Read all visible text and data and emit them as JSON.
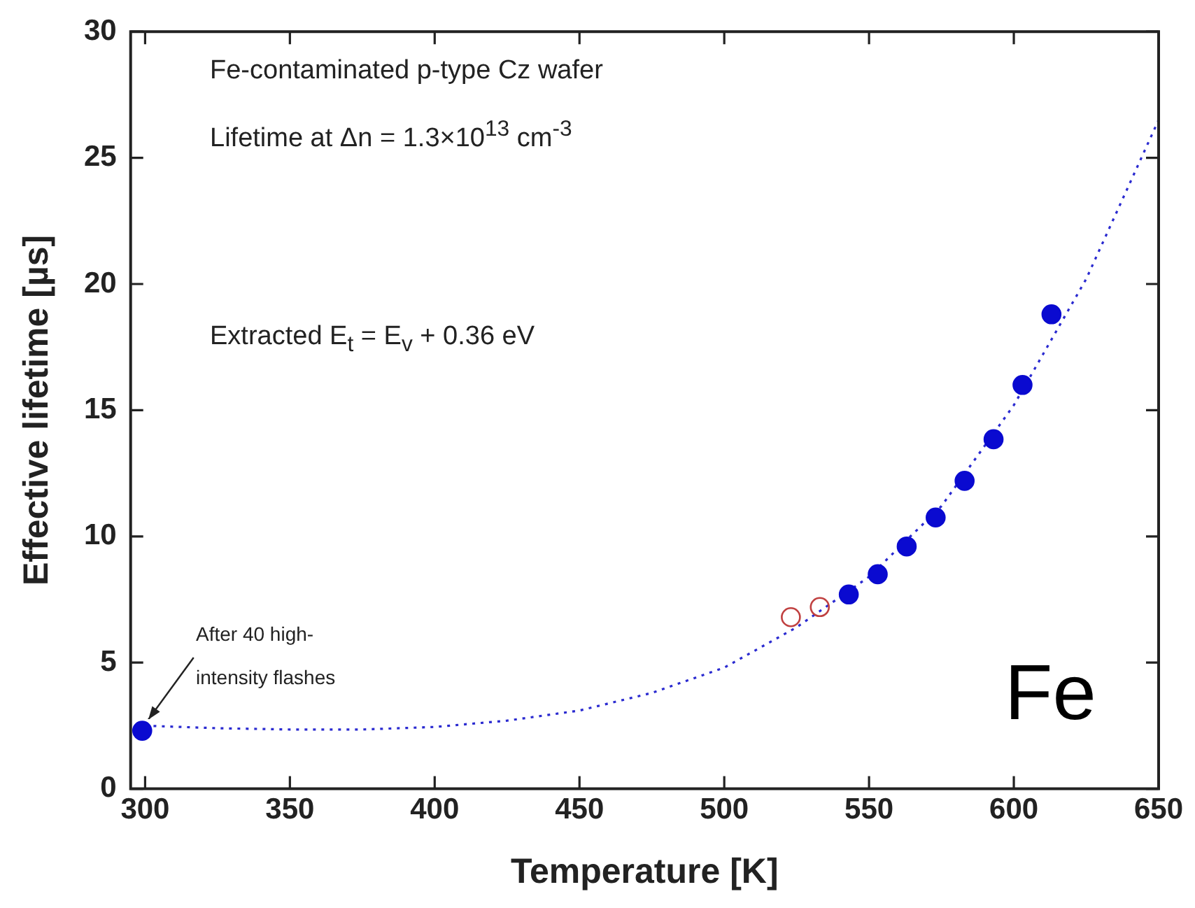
{
  "chart_data": {
    "type": "scatter",
    "xlabel": "Temperature [K]",
    "ylabel": "Effective lifetime [µs]",
    "xlim": [
      295,
      650
    ],
    "xticks": [
      300,
      350,
      400,
      450,
      500,
      550,
      600,
      650
    ],
    "ylim": [
      0,
      30
    ],
    "yticks": [
      0,
      5,
      10,
      15,
      20,
      25,
      30
    ],
    "grid": false,
    "legend": false,
    "marker": "circle",
    "series": [
      {
        "type": "line",
        "line_style": "dotted",
        "marker": "none",
        "color": "#2a2ad0",
        "x": [
          300,
          325,
          350,
          375,
          400,
          425,
          450,
          475,
          500,
          525,
          550,
          575,
          600,
          625,
          650
        ],
        "values": [
          2.5,
          2.4,
          2.35,
          2.35,
          2.45,
          2.7,
          3.1,
          3.8,
          4.8,
          6.4,
          8.4,
          11.2,
          15.2,
          20.2,
          26.5
        ]
      },
      {
        "color": "#c04040",
        "x": [
          523,
          533
        ],
        "values": [
          6.8,
          7.2
        ]
      },
      {
        "color": "#0a0ad0",
        "x": [
          299,
          543,
          553,
          563,
          573,
          583,
          593,
          603,
          613
        ],
        "values": [
          2.3,
          7.7,
          8.5,
          9.6,
          10.75,
          12.2,
          13.85,
          16.0,
          18.8
        ]
      }
    ],
    "annotations": [
      "Fe-contaminated p-type Cz wafer",
      "Lifetime at Δn = 1.3×10$^{13}$ cm$^{-3}$",
      "Extracted E$_{t}$ = E$_{v}$ + 0.36 eV",
      "Fe",
      {
        "text": "After 40 high-intensity flashes",
        "x": 299,
        "y": 2.3
      }
    ]
  }
}
